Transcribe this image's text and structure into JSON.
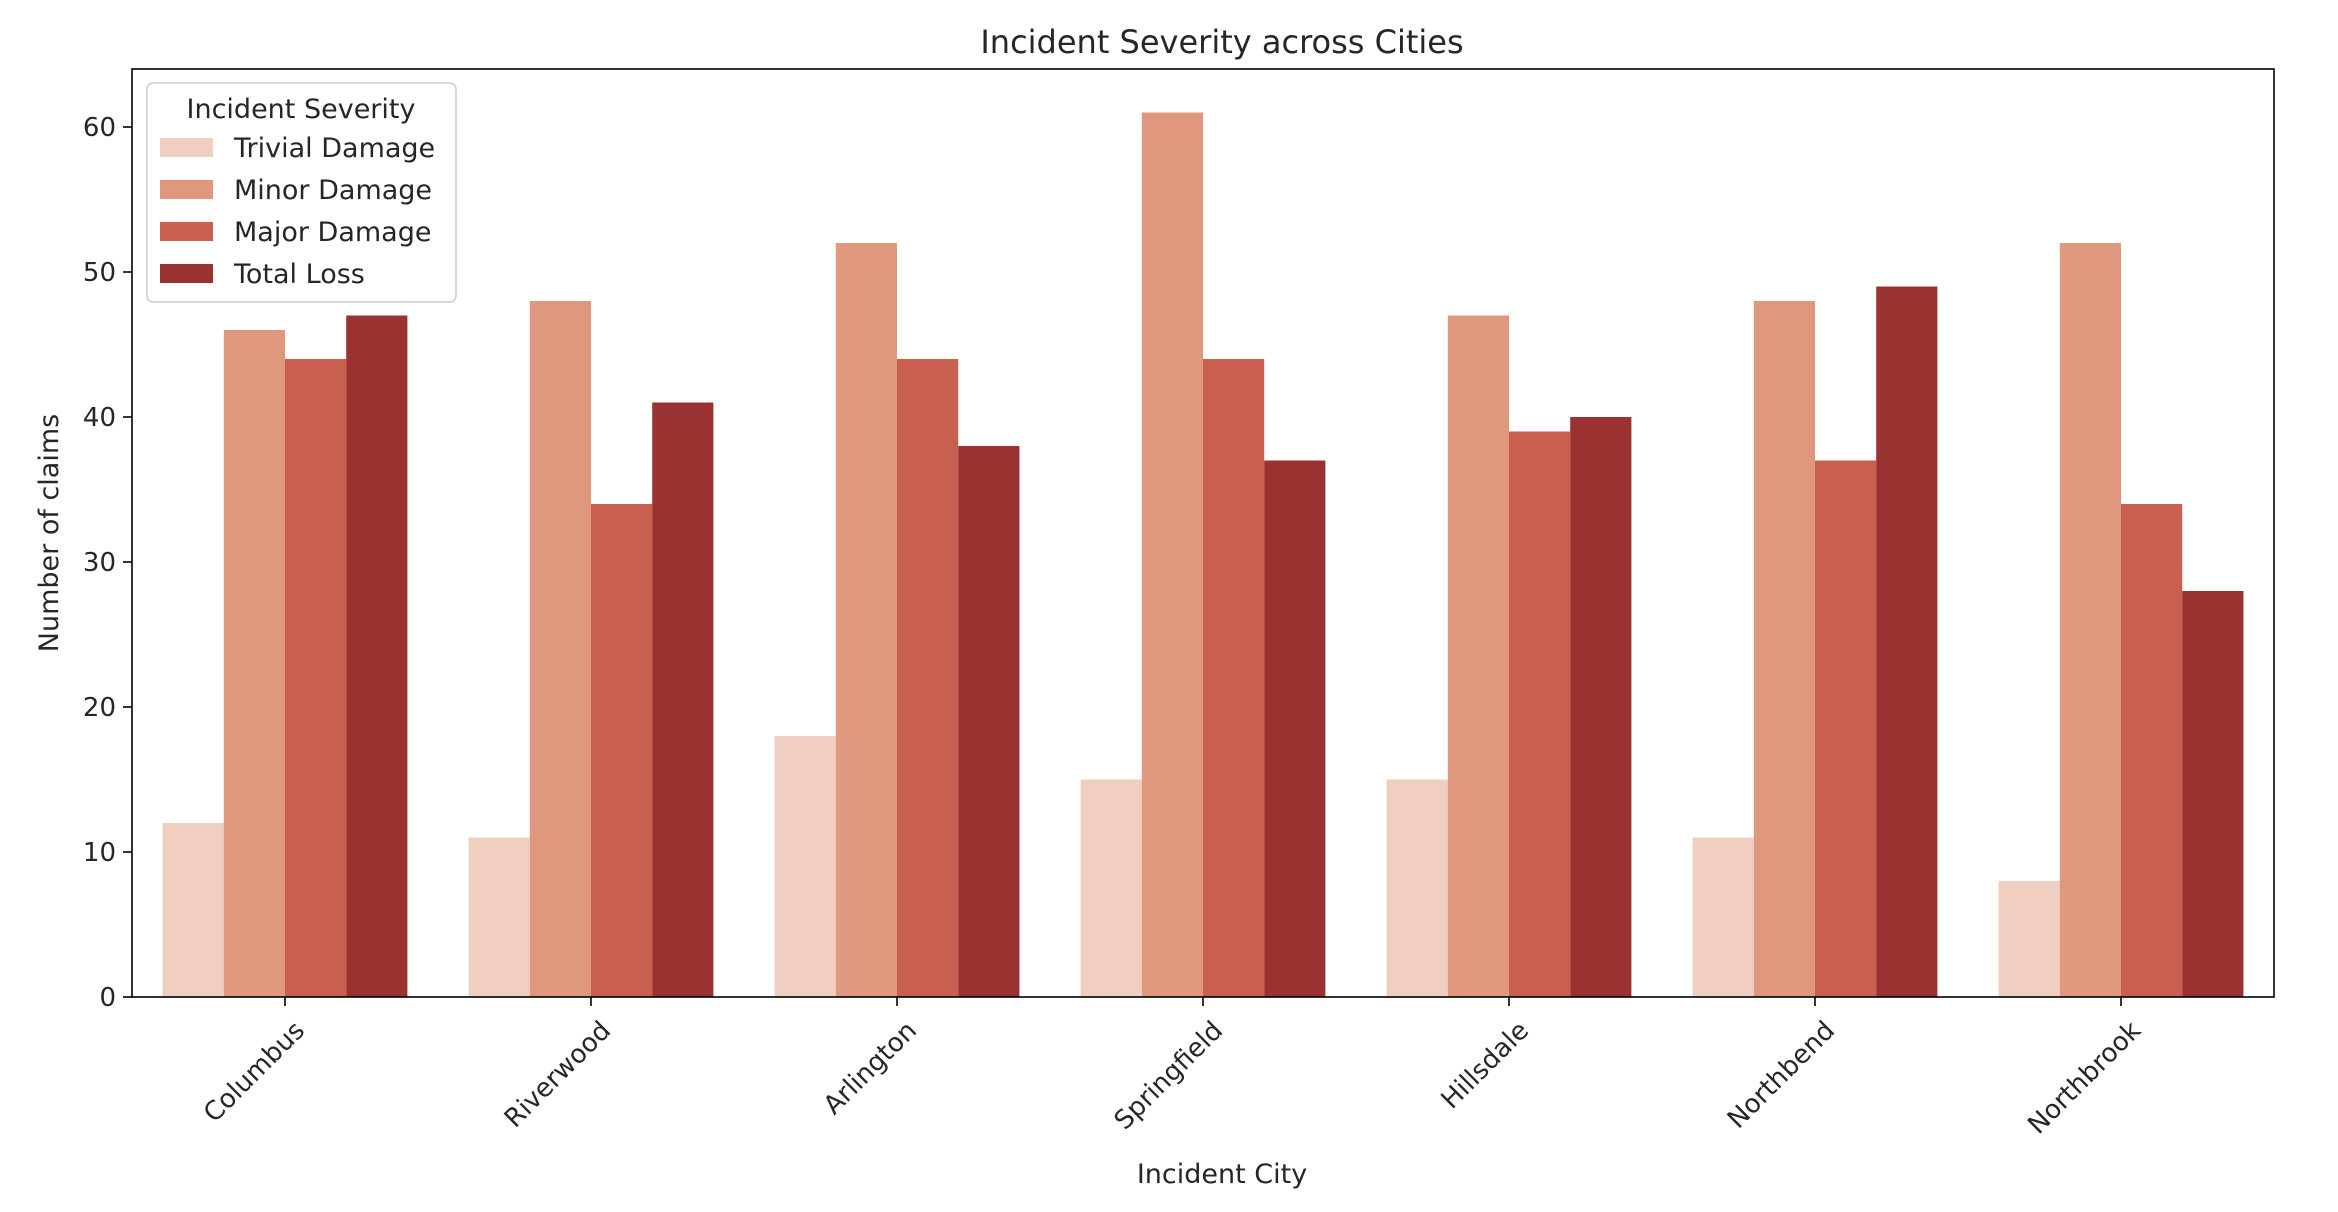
{
  "chart_data": {
    "type": "bar",
    "title": "Incident Severity across Cities",
    "xlabel": "Incident City",
    "ylabel": "Number of claims",
    "categories": [
      "Columbus",
      "Riverwood",
      "Arlington",
      "Springfield",
      "Hillsdale",
      "Northbend",
      "Northbrook"
    ],
    "series": [
      {
        "name": "Trivial Damage",
        "color": "#f0cfc0",
        "values": [
          12,
          11,
          18,
          15,
          15,
          11,
          8
        ]
      },
      {
        "name": "Minor Damage",
        "color": "#df977e",
        "values": [
          46,
          48,
          52,
          61,
          47,
          48,
          52
        ]
      },
      {
        "name": "Major Damage",
        "color": "#c95f4f",
        "values": [
          44,
          34,
          44,
          44,
          39,
          37,
          34
        ]
      },
      {
        "name": "Total Loss",
        "color": "#993230",
        "values": [
          47,
          41,
          38,
          37,
          40,
          49,
          28
        ]
      }
    ],
    "ylim": [
      0,
      64
    ],
    "yticks": [
      0,
      10,
      20,
      30,
      40,
      50,
      60
    ],
    "legend": {
      "title": "Incident Severity",
      "placement": "top-left"
    },
    "grid": false,
    "xtick_rotation": 45
  }
}
